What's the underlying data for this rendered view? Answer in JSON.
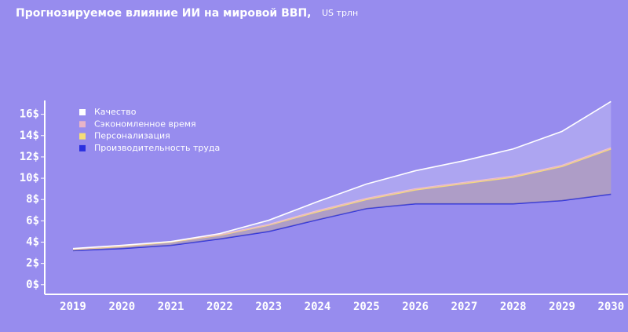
{
  "chart_data": {
    "type": "stacked_area",
    "title": "Прогнозируемое влияние ИИ на мировой ВВП,",
    "subtitle": "US трлн",
    "categories": [
      "2019",
      "2020",
      "2021",
      "2022",
      "2023",
      "2024",
      "2025",
      "2026",
      "2027",
      "2028",
      "2029",
      "2030"
    ],
    "series": [
      {
        "name": "Качество",
        "color": "#ffffff",
        "values": [
          0.05,
          0.05,
          0,
          0.1,
          0.4,
          0.85,
          1.35,
          1.7,
          2.05,
          2.55,
          3.2,
          4.35
        ]
      },
      {
        "name": "Сэкономленное время",
        "color": "#e8b4c8",
        "values": [
          0.05,
          0.05,
          0.05,
          0.05,
          0.05,
          0.1,
          0.1,
          0.1,
          0.1,
          0.1,
          0.1,
          0.1
        ]
      },
      {
        "name": "Персонализация",
        "color": "#f5dc78",
        "values": [
          0.1,
          0.2,
          0.3,
          0.35,
          0.6,
          0.75,
          0.85,
          1.3,
          1.9,
          2.5,
          3.2,
          4.25
        ]
      },
      {
        "name": "Производительность труда",
        "color": "#2a2fe0",
        "values": [
          3.2,
          3.4,
          3.7,
          4.3,
          5.0,
          6.1,
          7.15,
          7.6,
          7.6,
          7.6,
          7.9,
          8.5
        ]
      }
    ],
    "ylim": [
      -0.9,
      17.3
    ],
    "yticks": [
      {
        "value": 0,
        "label": "0$"
      },
      {
        "value": 2,
        "label": "2$"
      },
      {
        "value": 4,
        "label": "4$"
      },
      {
        "value": 6,
        "label": "6$"
      },
      {
        "value": 8,
        "label": "8$"
      },
      {
        "value": 10,
        "label": "10$"
      },
      {
        "value": 12,
        "label": "12$"
      },
      {
        "value": 14,
        "label": "14$"
      },
      {
        "value": 16,
        "label": "16$"
      }
    ],
    "legend": "upper-left"
  }
}
